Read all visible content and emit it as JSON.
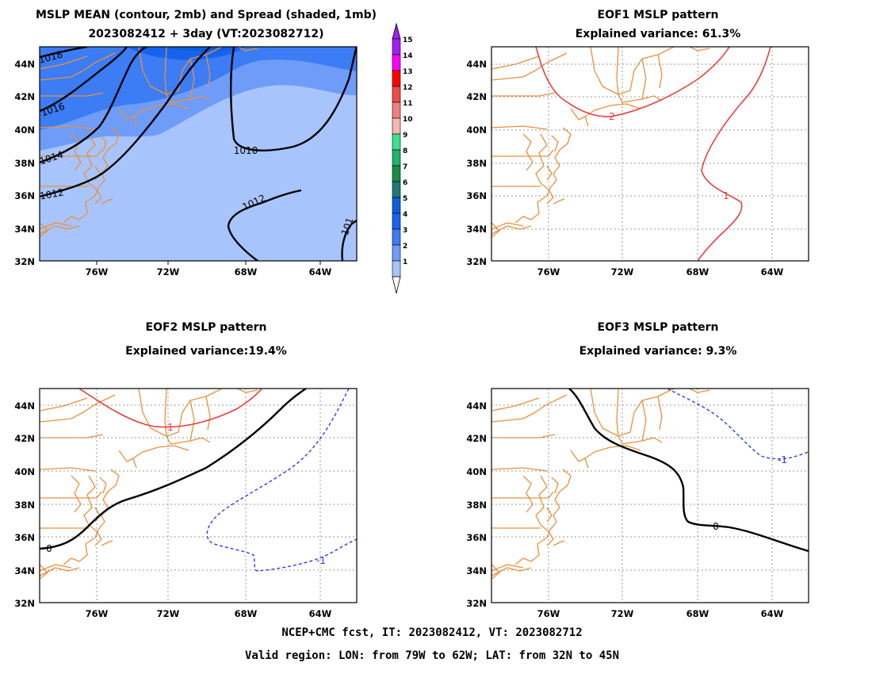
{
  "panels": [
    {
      "id": "mean",
      "title_lines": [
        "MSLP MEAN (contour, 2mb) and Spread (shaded, 1mb)",
        "2023082412 + 3day (VT:2023082712)"
      ],
      "contour_labels": [
        "1018",
        "1016",
        "1014",
        "1012",
        "1010",
        "1012",
        "101"
      ]
    },
    {
      "id": "eof1",
      "title_lines": [
        "EOF1 MSLP pattern",
        "Explained variance: 61.3%"
      ],
      "contour_labels": [
        "2",
        "1"
      ]
    },
    {
      "id": "eof2",
      "title_lines": [
        "EOF2 MSLP pattern",
        "Explained variance:19.4%"
      ],
      "contour_labels": [
        "1",
        "0",
        "-1"
      ]
    },
    {
      "id": "eof3",
      "title_lines": [
        "EOF3 MSLP pattern",
        "Explained variance: 9.3%"
      ],
      "contour_labels": [
        "0",
        "-1"
      ]
    }
  ],
  "axes": {
    "lon_ticks": [
      "76W",
      "72W",
      "68W",
      "64W"
    ],
    "lat_ticks": [
      "44N",
      "42N",
      "40N",
      "38N",
      "36N",
      "34N",
      "32N"
    ]
  },
  "colorbar": {
    "labels": [
      "15",
      "14",
      "13",
      "12",
      "11",
      "10",
      "9",
      "8",
      "7",
      "6",
      "5",
      "4",
      "3",
      "2",
      "1"
    ],
    "colors": [
      "#a020f0",
      "#ff00ff",
      "#ff0000",
      "#ee4c4c",
      "#f08080",
      "#f7b6b0",
      "#40e090",
      "#22b26a",
      "#1a8c48",
      "#1e7a70",
      "#0a5fdc",
      "#1464f0",
      "#3c7cf4",
      "#6e9cf8",
      "#a8c4fc"
    ]
  },
  "colors": {
    "coast": "#e8913e",
    "positive_contour": "#e84040",
    "negative_contour": "#2a40e0",
    "zero_contour": "#000000"
  },
  "footer": {
    "line1": "NCEP+CMC fcst, IT: 2023082412, VT: 2023082712",
    "line2": "Valid region: LON: from 79W to 62W; LAT: from 32N to 45N"
  }
}
